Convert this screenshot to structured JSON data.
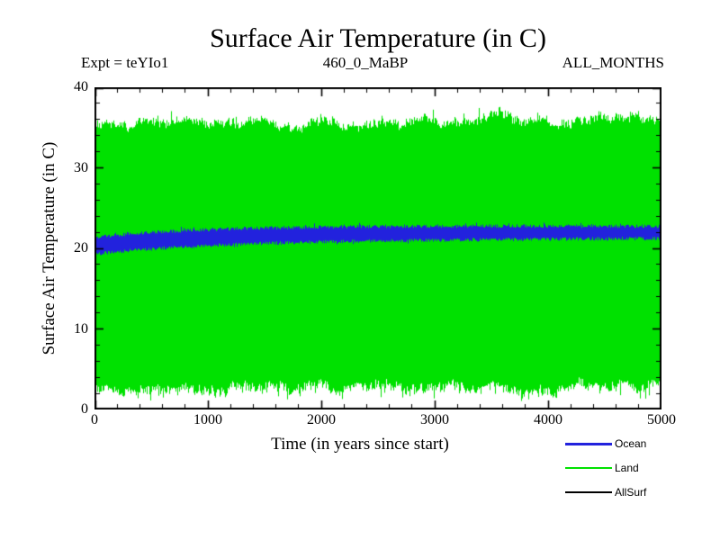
{
  "page": {
    "background": "#ffffff"
  },
  "chart_data": {
    "type": "area",
    "title": "Surface Air Temperature (in C)",
    "annotations": {
      "left": "Expt = teYIo1",
      "center": "460_0_MaBP",
      "right": "ALL_MONTHS"
    },
    "xlabel": "Time (in years since start)",
    "ylabel": "Surface Air Temperature (in C)",
    "xlim": [
      0,
      5000
    ],
    "ylim": [
      0,
      40
    ],
    "x_major_ticks": [
      0,
      1000,
      2000,
      3000,
      4000,
      5000
    ],
    "y_major_ticks": [
      0,
      10,
      20,
      30,
      40
    ],
    "x_minor_step": 200,
    "y_minor_step": 2,
    "grid": false,
    "axis_color": "#000000",
    "legend_position": "below-plot-right",
    "series": [
      {
        "name": "Land",
        "color": "#00e100",
        "style": "noisy-envelope-band",
        "description": "monthly land temperatures fill a wide noisy band",
        "band": {
          "top_c_start": 35.2,
          "top_c_end": 36.1,
          "bottom_c_start": 2.6,
          "bottom_c_end": 2.3,
          "edge_noise_c": 0.45,
          "spike_c": 1.1,
          "spike_probability": 0.09
        }
      },
      {
        "name": "Ocean",
        "color": "#2222dd",
        "style": "noisy-envelope-band",
        "description": "ocean temperatures form a narrow band rising from ~20.4 C to ~22 C",
        "band": {
          "center_c_start": 20.35,
          "center_c_end": 22.0,
          "rise_time_constant_years": 1100,
          "half_width_c_start": 1.05,
          "half_width_c_end": 0.75,
          "edge_noise_c": 0.22
        }
      },
      {
        "name": "AllSurf",
        "color": "#000000",
        "style": "thin-line-hidden-behind-ocean-band"
      }
    ],
    "legend": [
      {
        "label": "Ocean",
        "color": "#2222dd",
        "line_weight": 3
      },
      {
        "label": "Land",
        "color": "#00e100",
        "line_weight": 2
      },
      {
        "label": "AllSurf",
        "color": "#000000",
        "line_weight": 2
      }
    ]
  }
}
